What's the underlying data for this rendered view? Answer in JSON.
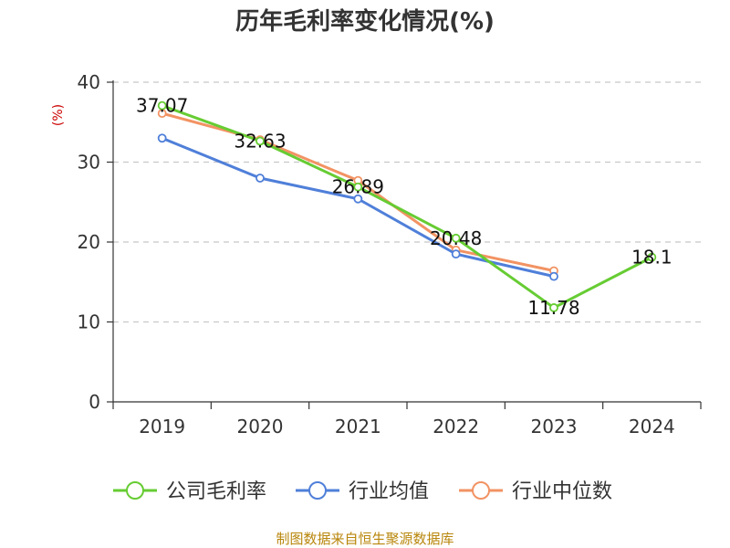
{
  "chart_data": {
    "type": "line",
    "title": "历年毛利率变化情况(%)",
    "ylabel": "(%)",
    "xlabel": "",
    "categories": [
      "2019",
      "2020",
      "2021",
      "2022",
      "2023",
      "2024"
    ],
    "ylim": [
      0,
      40
    ],
    "yticks": [
      0,
      10,
      20,
      30,
      40
    ],
    "grid": true,
    "legend_position": "bottom",
    "series": [
      {
        "name": "公司毛利率",
        "color": "#66cc33",
        "values": [
          37.07,
          32.63,
          26.89,
          20.48,
          11.78,
          18.1
        ],
        "labels": [
          "37.07",
          "32.63",
          "26.89",
          "20.48",
          "11.78",
          "18.1"
        ]
      },
      {
        "name": "行业均值",
        "color": "#4f7fd9",
        "values": [
          33.0,
          28.0,
          25.4,
          18.5,
          15.7,
          null
        ],
        "labels": []
      },
      {
        "name": "行业中位数",
        "color": "#f29363",
        "values": [
          36.1,
          32.8,
          27.7,
          19.0,
          16.4,
          null
        ],
        "labels": []
      }
    ],
    "source": "制图数据来自恒生聚源数据库"
  }
}
